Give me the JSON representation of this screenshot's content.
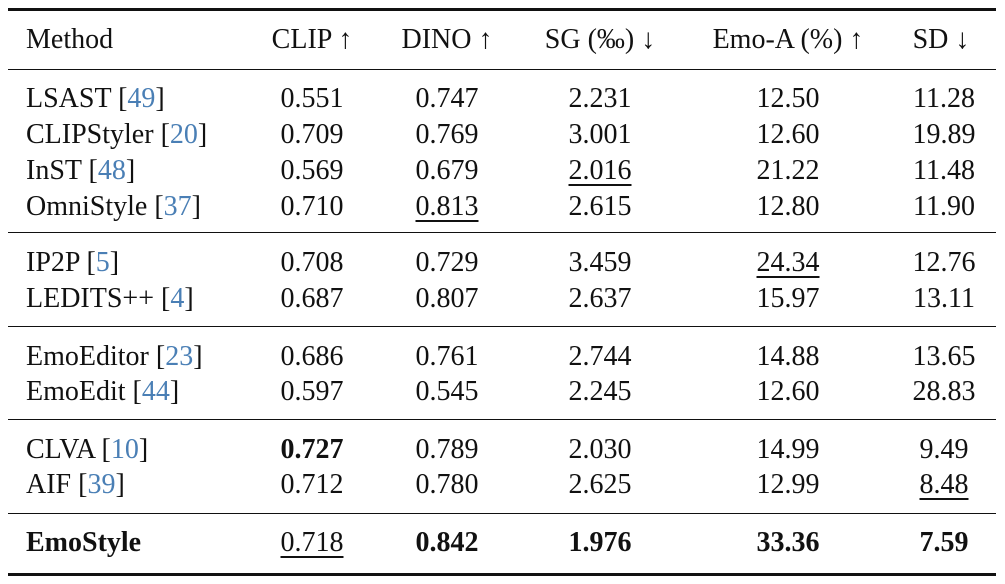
{
  "columns": [
    "Method",
    "CLIP ↑",
    "DINO ↑",
    "SG (‰) ↓",
    "Emo-A (%) ↑",
    "SD ↓"
  ],
  "groups": [
    {
      "rows": [
        {
          "method": "LSAST",
          "ref": "49",
          "clip": "0.551",
          "dino": "0.747",
          "sg": "2.231",
          "emoa": "12.50",
          "sd": "11.28"
        },
        {
          "method": "CLIPStyler",
          "ref": "20",
          "clip": "0.709",
          "dino": "0.769",
          "sg": "3.001",
          "emoa": "12.60",
          "sd": "19.89"
        },
        {
          "method": "InST",
          "ref": "48",
          "clip": "0.569",
          "dino": "0.679",
          "sg": "2.016",
          "emoa": "21.22",
          "sd": "11.48"
        },
        {
          "method": "OmniStyle",
          "ref": "37",
          "clip": "0.710",
          "dino": "0.813",
          "sg": "2.615",
          "emoa": "12.80",
          "sd": "11.90"
        }
      ]
    },
    {
      "rows": [
        {
          "method": "IP2P",
          "ref": "5",
          "clip": "0.708",
          "dino": "0.729",
          "sg": "3.459",
          "emoa": "24.34",
          "sd": "12.76"
        },
        {
          "method": "LEDITS++",
          "ref": "4",
          "clip": "0.687",
          "dino": "0.807",
          "sg": "2.637",
          "emoa": "15.97",
          "sd": "13.11"
        }
      ]
    },
    {
      "rows": [
        {
          "method": "EmoEditor",
          "ref": "23",
          "clip": "0.686",
          "dino": "0.761",
          "sg": "2.744",
          "emoa": "14.88",
          "sd": "13.65"
        },
        {
          "method": "EmoEdit",
          "ref": "44",
          "clip": "0.597",
          "dino": "0.545",
          "sg": "2.245",
          "emoa": "12.60",
          "sd": "28.83"
        }
      ]
    },
    {
      "rows": [
        {
          "method": "CLVA",
          "ref": "10",
          "clip": "0.727",
          "dino": "0.789",
          "sg": "2.030",
          "emoa": "14.99",
          "sd": "9.49"
        },
        {
          "method": "AIF",
          "ref": "39",
          "clip": "0.712",
          "dino": "0.780",
          "sg": "2.625",
          "emoa": "12.99",
          "sd": "8.48"
        }
      ]
    }
  ],
  "final_row": {
    "method": "EmoStyle",
    "clip": "0.718",
    "dino": "0.842",
    "sg": "1.976",
    "emoa": "33.36",
    "sd": "7.59"
  },
  "colors": {
    "reference_link": "#4a7fb5",
    "text": "#111111"
  }
}
